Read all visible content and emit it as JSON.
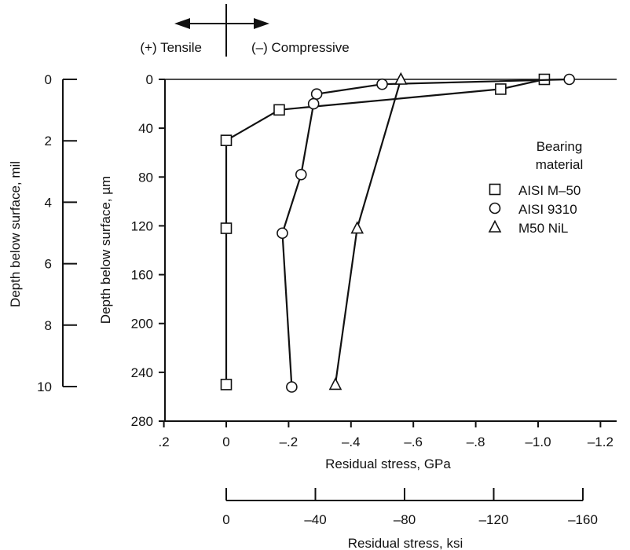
{
  "chart_data": {
    "type": "line",
    "direction_labels": {
      "tensile": "(+) Tensile",
      "compressive": "(–) Compressive"
    },
    "xlabel": "Residual stress, GPa",
    "xlabel_secondary": "Residual stress, ksi",
    "ylabel": "Depth below surface, µm",
    "ylabel_secondary": "Depth below surface, mil",
    "xlim": [
      0.2,
      -1.2
    ],
    "ylim": [
      0,
      280
    ],
    "x_ticks": [
      0.2,
      0,
      -0.2,
      -0.4,
      -0.6,
      -0.8,
      -1.0,
      -1.2
    ],
    "x_tick_labels": [
      ".2",
      "0",
      "–.2",
      "–.4",
      "–.6",
      "–.8",
      "–1.0",
      "–1.2"
    ],
    "y_ticks": [
      0,
      40,
      80,
      120,
      160,
      200,
      240,
      280
    ],
    "y_tick_labels": [
      "0",
      "40",
      "80",
      "120",
      "160",
      "200",
      "240",
      "280"
    ],
    "ksi_ticks": [
      0,
      -40,
      -80,
      -120,
      -160
    ],
    "ksi_tick_labels": [
      "0",
      "–40",
      "–80",
      "–120",
      "–160"
    ],
    "mil_ticks": [
      0,
      2,
      4,
      6,
      8,
      10
    ],
    "mil_tick_labels": [
      "0",
      "2",
      "4",
      "6",
      "8",
      "10"
    ],
    "legend_title": [
      "Bearing",
      "material"
    ],
    "legend_position": "right",
    "series": [
      {
        "name": "AISI M–50",
        "marker": "square",
        "points": [
          [
            -1.02,
            0
          ],
          [
            -0.88,
            8
          ],
          [
            -0.17,
            25
          ],
          [
            0.0,
            50
          ],
          [
            0.0,
            122
          ],
          [
            0.0,
            250
          ]
        ]
      },
      {
        "name": "AISI 9310",
        "marker": "circle",
        "points": [
          [
            -1.1,
            0
          ],
          [
            -0.5,
            4
          ],
          [
            -0.29,
            12
          ],
          [
            -0.28,
            20
          ],
          [
            -0.24,
            78
          ],
          [
            -0.18,
            126
          ],
          [
            -0.21,
            252
          ]
        ]
      },
      {
        "name": "M50 NiL",
        "marker": "triangle",
        "points": [
          [
            -0.56,
            0
          ],
          [
            -0.42,
            122
          ],
          [
            -0.35,
            250
          ]
        ]
      }
    ]
  }
}
